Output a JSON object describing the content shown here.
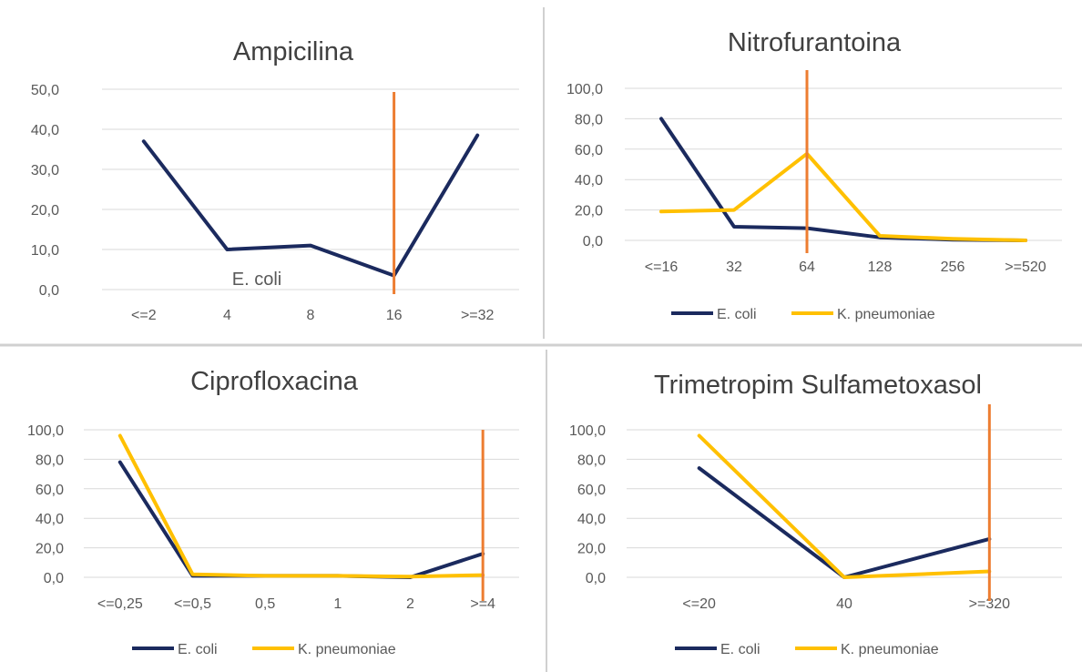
{
  "colors": {
    "e_coli": "#1b2a5e",
    "k_pneumoniae": "#ffc000",
    "breakpoint": "#ed7d31",
    "grid": "#d9d9d9",
    "divider": "#d0d0d0",
    "text": "#595959",
    "title": "#404040"
  },
  "chart_data": [
    {
      "type": "line",
      "title": "Ampicilina",
      "categories": [
        "<=2",
        "4",
        "8",
        "16",
        ">=32"
      ],
      "y_ticks": [
        "0,0",
        "10,0",
        "20,0",
        "30,0",
        "40,0",
        "50,0"
      ],
      "ylim": [
        0,
        50
      ],
      "breakpoint_category": "16",
      "inline_label": "E. coli",
      "series": [
        {
          "name": "E. coli",
          "color_key": "e_coli",
          "values": [
            37,
            10,
            11,
            3.5,
            38.5
          ]
        }
      ],
      "legend": []
    },
    {
      "type": "line",
      "title": "Nitrofurantoina",
      "categories": [
        "<=16",
        "32",
        "64",
        "128",
        "256",
        ">=520"
      ],
      "y_ticks": [
        "0,0",
        "20,0",
        "40,0",
        "60,0",
        "80,0",
        "100,0"
      ],
      "ylim": [
        0,
        100
      ],
      "breakpoint_category": "64",
      "series": [
        {
          "name": "E. coli",
          "color_key": "e_coli",
          "values": [
            80,
            9,
            8,
            2,
            0.5,
            0
          ]
        },
        {
          "name": "K. pneumoniae",
          "color_key": "k_pneumoniae",
          "values": [
            19,
            20,
            57,
            3,
            1,
            0
          ]
        }
      ],
      "legend": [
        "E. coli",
        "K. pneumoniae"
      ]
    },
    {
      "type": "line",
      "title": "Ciprofloxacina",
      "categories": [
        "<=0,25",
        "<=0,5",
        "0,5",
        "1",
        "2",
        ">=4"
      ],
      "y_ticks": [
        "0,0",
        "20,0",
        "40,0",
        "60,0",
        "80,0",
        "100,0"
      ],
      "ylim": [
        0,
        100
      ],
      "breakpoint_category": ">=4",
      "series": [
        {
          "name": "E. coli",
          "color_key": "e_coli",
          "values": [
            78,
            1,
            1,
            1,
            0,
            16
          ]
        },
        {
          "name": "K. pneumoniae",
          "color_key": "k_pneumoniae",
          "values": [
            96,
            2,
            1,
            1,
            0.5,
            1.5
          ]
        }
      ],
      "legend": [
        "E. coli",
        "K. pneumoniae"
      ]
    },
    {
      "type": "line",
      "title": "Trimetropim Sulfametoxasol",
      "categories": [
        "<=20",
        "40",
        ">=320"
      ],
      "y_ticks": [
        "0,0",
        "20,0",
        "40,0",
        "60,0",
        "80,0",
        "100,0"
      ],
      "ylim": [
        0,
        100
      ],
      "breakpoint_category": ">=320",
      "series": [
        {
          "name": "E. coli",
          "color_key": "e_coli",
          "values": [
            74,
            0,
            26
          ]
        },
        {
          "name": "K. pneumoniae",
          "color_key": "k_pneumoniae",
          "values": [
            96,
            0,
            4
          ]
        }
      ],
      "legend": [
        "E. coli",
        "K. pneumoniae"
      ]
    }
  ]
}
